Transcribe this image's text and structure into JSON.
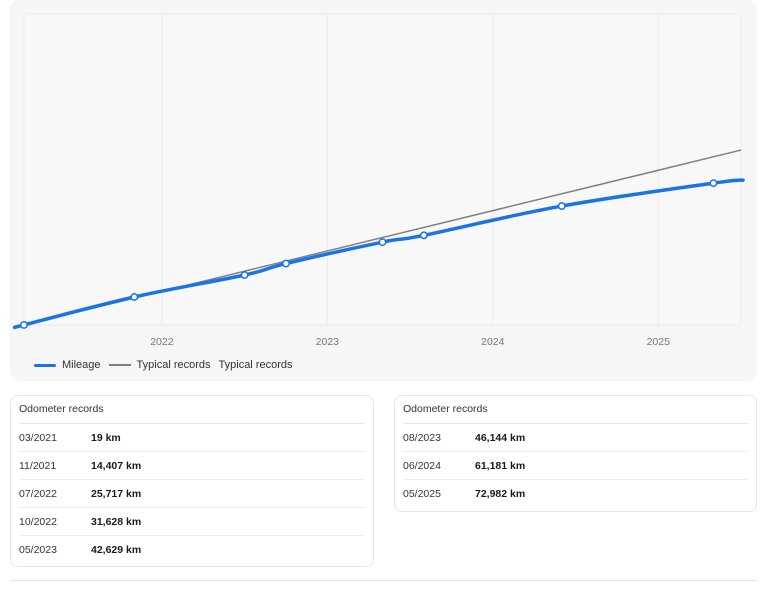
{
  "chart_data": {
    "type": "line",
    "title": "",
    "xlabel": "",
    "ylabel": "",
    "x_ticks": [
      "2022",
      "2023",
      "2024",
      "2025"
    ],
    "x_range": [
      "2021-03",
      "2025-07"
    ],
    "y_range": [
      0,
      160000
    ],
    "grid": true,
    "legend_position": "bottom-left",
    "series": [
      {
        "name": "Mileage",
        "color": "#1a73e8",
        "points": [
          {
            "x": "2021-03",
            "y": 19
          },
          {
            "x": "2021-11",
            "y": 14407
          },
          {
            "x": "2022-07",
            "y": 25717
          },
          {
            "x": "2022-10",
            "y": 31628
          },
          {
            "x": "2023-05",
            "y": 42629
          },
          {
            "x": "2023-08",
            "y": 46144
          },
          {
            "x": "2024-06",
            "y": 61181
          },
          {
            "x": "2025-05",
            "y": 72982
          }
        ]
      },
      {
        "name": "Typical records",
        "color": "#808080",
        "points": [
          {
            "x": "2021-03",
            "y": 0
          },
          {
            "x": "2025-07",
            "y": 90000
          }
        ]
      }
    ],
    "legend_extra": "Typical records"
  },
  "records_left": {
    "title": "Odometer records",
    "rows": [
      {
        "date": "03/2021",
        "value": "19 km"
      },
      {
        "date": "11/2021",
        "value": "14,407 km"
      },
      {
        "date": "07/2022",
        "value": "25,717 km"
      },
      {
        "date": "10/2022",
        "value": "31,628 km"
      },
      {
        "date": "05/2023",
        "value": "42,629 km"
      }
    ]
  },
  "records_right": {
    "title": "Odometer records",
    "rows": [
      {
        "date": "08/2023",
        "value": "46,144 km"
      },
      {
        "date": "06/2024",
        "value": "61,181 km"
      },
      {
        "date": "05/2025",
        "value": "72,982 km"
      }
    ]
  }
}
